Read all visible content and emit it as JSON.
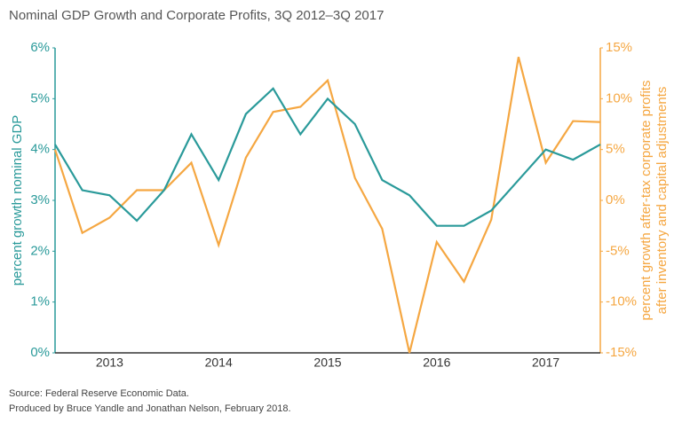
{
  "chart_data": {
    "type": "line",
    "title": "Nominal GDP Growth and Corporate Profits, 3Q 2012–3Q 2017",
    "notes": [
      "Source: Federal Reserve Economic Data.",
      "Produced by Bruce Yandle and Jonathan Nelson, February 2018."
    ],
    "y_label": "percent growth nominal GDP",
    "y2_label": [
      "percent growth after-tax corporate profits",
      "after inventory and capital adjustments"
    ],
    "categories": [
      null,
      null,
      "2013",
      null,
      null,
      null,
      "2014",
      null,
      null,
      null,
      "2015",
      null,
      null,
      null,
      "2016",
      null,
      null,
      null,
      "2017",
      null,
      null
    ],
    "series": [
      {
        "name": "Nominal GDP",
        "color": "#2a9a9a",
        "axis": "y",
        "values": [
          4.1,
          3.2,
          3.1,
          2.6,
          3.2,
          4.3,
          3.4,
          4.7,
          5.2,
          4.3,
          5.0,
          4.5,
          3.4,
          3.1,
          2.5,
          2.5,
          2.8,
          3.4,
          4.0,
          3.8,
          4.1
        ]
      },
      {
        "name": "Corporate Profits",
        "color": "#f5a742",
        "axis": "y2",
        "values": [
          5.0,
          -3.2,
          -1.7,
          1.0,
          1.0,
          3.7,
          -4.4,
          4.2,
          8.7,
          9.2,
          11.8,
          2.2,
          -2.8,
          -15,
          -4.1,
          -8.0,
          -1.9,
          14.1,
          3.7,
          7.8,
          7.7
        ]
      }
    ],
    "ylim": [
      0,
      6
    ],
    "yticks": [
      {
        "value": 0,
        "label": "0%"
      },
      {
        "value": 1,
        "label": "1%"
      },
      {
        "value": 2,
        "label": "2%"
      },
      {
        "value": 3,
        "label": "3%"
      },
      {
        "value": 4,
        "label": "4%"
      },
      {
        "value": 5,
        "label": "5%"
      },
      {
        "value": 6,
        "label": "6%"
      }
    ],
    "y2lim": [
      -15,
      15
    ],
    "y2ticks": [
      {
        "value": -15,
        "label": "-15%"
      },
      {
        "value": -10,
        "label": "-10%"
      },
      {
        "value": -5,
        "label": "-5%"
      },
      {
        "value": 0,
        "label": "0%"
      },
      {
        "value": 5,
        "label": "5%"
      },
      {
        "value": 10,
        "label": "10%"
      },
      {
        "value": 15,
        "label": "15%"
      }
    ]
  }
}
